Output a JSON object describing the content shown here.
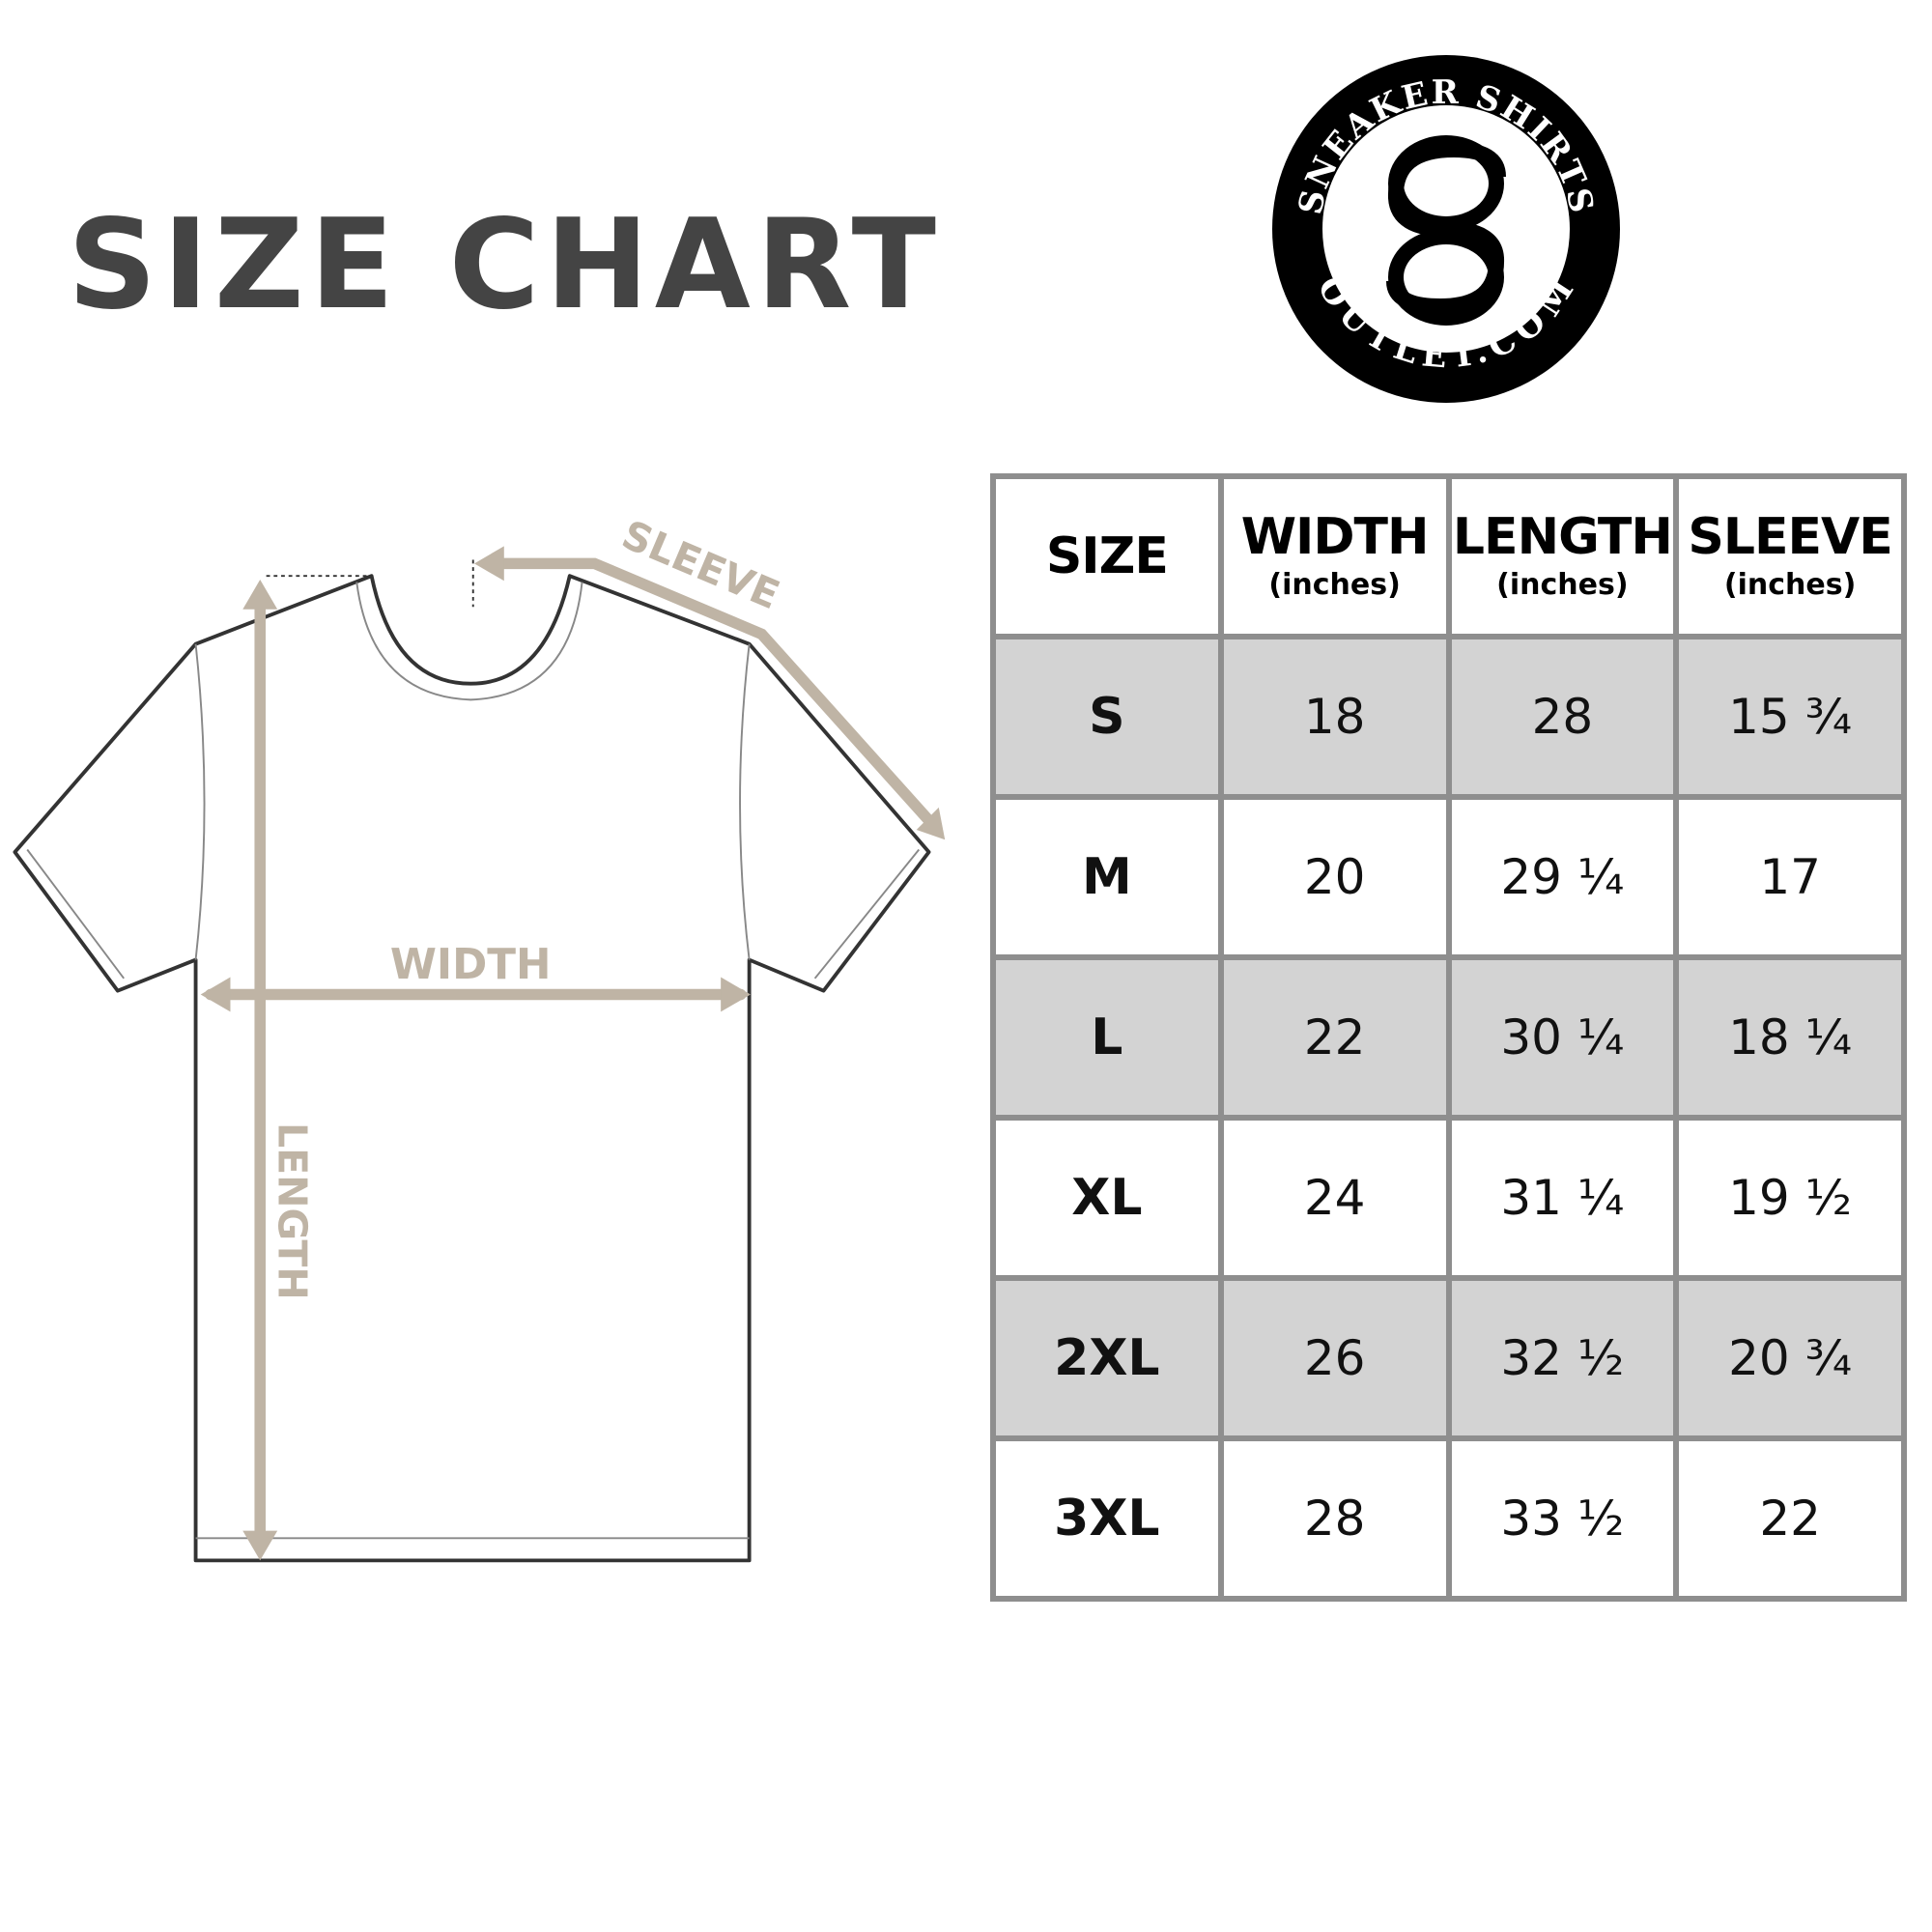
{
  "title": "SIZE CHART",
  "logo": {
    "top_text": "SNEAKER SHIRTS",
    "bottom_text": "OUTLET.COM",
    "monogram": "SO"
  },
  "diagram": {
    "sleeve_label": "SLEEVE",
    "width_label": "WIDTH",
    "length_label": "LENGTH",
    "arrow_color": "#bfb4a5"
  },
  "table": {
    "headers": [
      {
        "label": "SIZE",
        "unit": ""
      },
      {
        "label": "WIDTH",
        "unit": "(inches)"
      },
      {
        "label": "LENGTH",
        "unit": "(inches)"
      },
      {
        "label": "SLEEVE",
        "unit": "(inches)"
      }
    ],
    "rows": [
      [
        "S",
        "18",
        "28",
        "15 ¾"
      ],
      [
        "M",
        "20",
        "29 ¼",
        "17"
      ],
      [
        "L",
        "22",
        "30 ¼",
        "18 ¼"
      ],
      [
        "XL",
        "24",
        "31 ¼",
        "19 ½"
      ],
      [
        "2XL",
        "26",
        "32 ½",
        "20 ¾"
      ],
      [
        "3XL",
        "28",
        "33 ½",
        "22"
      ]
    ]
  }
}
